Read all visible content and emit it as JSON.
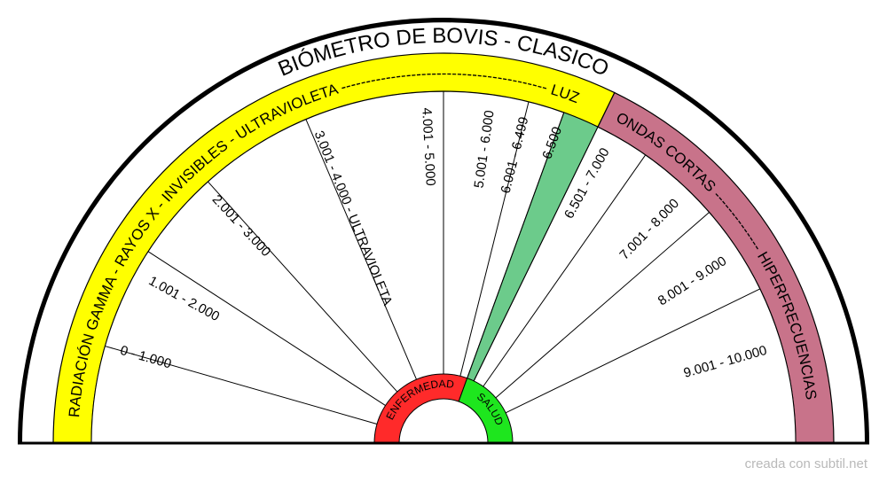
{
  "title": "BIÓMETRO DE BOVIS  -  CLASICO",
  "bands": {
    "left": {
      "label": "RADIACIÓN GAMMA - RAYOS X - INVISIBLES - ULTRAVIOLETA ----------------------------------------- LUZ",
      "color": "#ffff00"
    },
    "right": {
      "label": "ONDAS CORTAS -------------- HIPERFRECUENCIAS",
      "color": "#c8738a"
    }
  },
  "sectors": [
    {
      "label": "0  -  1.000"
    },
    {
      "label": "1.001  -  2.000"
    },
    {
      "label": "2.001  -  3.000"
    },
    {
      "label": "3.001  -  4.000  -  ULTRAVIOLETA"
    },
    {
      "label": "4.001  -  5.000"
    },
    {
      "label": "5.001  -  6.000"
    },
    {
      "label": "6.001  -  6.499"
    },
    {
      "label": "6.500",
      "color": "#6ccb8b"
    },
    {
      "label": "6.501  -  7.000"
    },
    {
      "label": "7.001  -  8.000"
    },
    {
      "label": "8.001  -  9.000"
    },
    {
      "label": "9.001  -  10.000"
    }
  ],
  "hub": {
    "left": {
      "label": "ENFERMEDAD",
      "color": "#ff2a2a"
    },
    "right": {
      "label": "SALUD",
      "color": "#1ee61e"
    }
  },
  "credit": "creada con subtil.net",
  "colors": {
    "outline": "#000000",
    "background": "#ffffff",
    "credit": "#b9b9b9"
  }
}
